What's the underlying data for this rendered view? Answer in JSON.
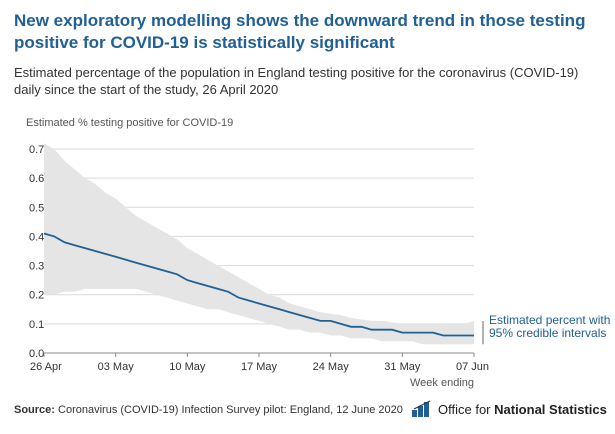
{
  "headline": "New exploratory modelling shows the downward trend in those testing positive for COVID-19 is statistically significant",
  "subtitle": "Estimated percentage of the population in England testing positive for the coronavirus (COVID-19) daily since the start of the study, 26 April 2020",
  "annotation": "Estimated percent with 95% credible intervals",
  "footer": {
    "source_label": "Source:",
    "source_text": " Coronavirus (COVID-19) Infection Survey pilot: England, 12 June 2020"
  },
  "logo": {
    "prefix": "Office for ",
    "bold": "National Statistics"
  },
  "colors": {
    "line": "#206095",
    "band": "#e5e5e5",
    "grid": "#d9d9d9",
    "title": "#206095"
  },
  "chart_data": {
    "type": "area",
    "title": "New exploratory modelling shows the downward trend in those testing positive for COVID-19 is statistically significant",
    "ylabel": "Estimated % testing positive for COVID-19",
    "xlabel": "Week ending",
    "ylim": [
      0,
      0.7
    ],
    "yticks": [
      0.0,
      0.1,
      0.2,
      0.3,
      0.4,
      0.5,
      0.6,
      0.7
    ],
    "ytick_labels": [
      "0.0",
      "0.1",
      "0.2",
      "0.3",
      "0.4",
      "0.5",
      "0.6",
      "0.7"
    ],
    "xlim": [
      0,
      42
    ],
    "xticks": [
      0,
      7,
      14,
      21,
      28,
      35,
      42
    ],
    "xtick_labels": [
      "26 Apr",
      "03 May",
      "10 May",
      "17 May",
      "24 May",
      "31 May",
      "07 Jun"
    ],
    "grid": true,
    "x": [
      0,
      1,
      2,
      3,
      4,
      5,
      6,
      7,
      8,
      9,
      10,
      11,
      12,
      13,
      14,
      15,
      16,
      17,
      18,
      19,
      20,
      21,
      22,
      23,
      24,
      25,
      26,
      27,
      28,
      29,
      30,
      31,
      32,
      33,
      34,
      35,
      36,
      37,
      38,
      39,
      40,
      41,
      42
    ],
    "series": [
      {
        "name": "Estimated percent",
        "values": [
          0.41,
          0.4,
          0.38,
          0.37,
          0.36,
          0.35,
          0.34,
          0.33,
          0.32,
          0.31,
          0.3,
          0.29,
          0.28,
          0.27,
          0.25,
          0.24,
          0.23,
          0.22,
          0.21,
          0.19,
          0.18,
          0.17,
          0.16,
          0.15,
          0.14,
          0.13,
          0.12,
          0.11,
          0.11,
          0.1,
          0.09,
          0.09,
          0.08,
          0.08,
          0.08,
          0.07,
          0.07,
          0.07,
          0.07,
          0.06,
          0.06,
          0.06,
          0.06
        ]
      },
      {
        "name": "Upper 95% credible interval",
        "values": [
          0.72,
          0.7,
          0.66,
          0.63,
          0.6,
          0.58,
          0.55,
          0.53,
          0.5,
          0.47,
          0.45,
          0.43,
          0.41,
          0.39,
          0.36,
          0.34,
          0.32,
          0.3,
          0.28,
          0.26,
          0.24,
          0.22,
          0.2,
          0.19,
          0.17,
          0.16,
          0.15,
          0.14,
          0.135,
          0.13,
          0.12,
          0.115,
          0.11,
          0.11,
          0.105,
          0.1,
          0.1,
          0.1,
          0.1,
          0.1,
          0.1,
          0.1,
          0.11
        ]
      },
      {
        "name": "Lower 95% credible interval",
        "values": [
          0.2,
          0.2,
          0.21,
          0.21,
          0.22,
          0.22,
          0.22,
          0.22,
          0.22,
          0.22,
          0.21,
          0.2,
          0.19,
          0.18,
          0.17,
          0.16,
          0.15,
          0.15,
          0.14,
          0.13,
          0.12,
          0.11,
          0.1,
          0.09,
          0.08,
          0.08,
          0.07,
          0.07,
          0.06,
          0.06,
          0.05,
          0.05,
          0.05,
          0.04,
          0.04,
          0.04,
          0.04,
          0.03,
          0.03,
          0.03,
          0.03,
          0.03,
          0.03
        ]
      }
    ]
  }
}
